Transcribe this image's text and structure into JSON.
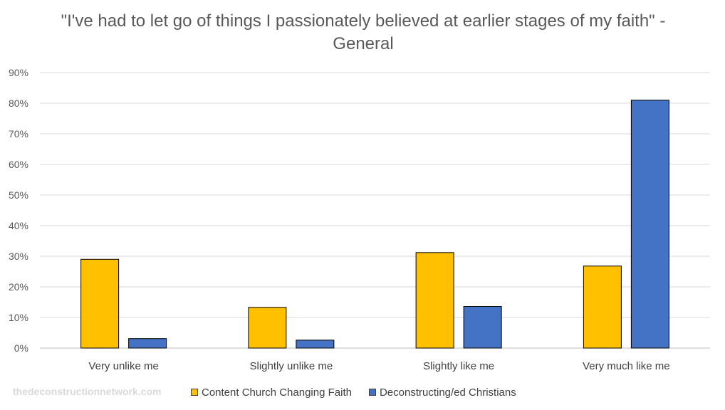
{
  "chart_data": {
    "type": "bar",
    "title": "\"I've had to let go of things I passionately believed at earlier stages of my faith\" - General",
    "categories": [
      "Very unlike me",
      "Slightly unlike me",
      "Slightly like me",
      "Very much like me"
    ],
    "series": [
      {
        "name": "Content Church Changing Faith",
        "color": "#FFC000",
        "values": [
          29,
          13.3,
          31.2,
          26.8
        ]
      },
      {
        "name": "Deconstructing/ed Christians",
        "color": "#4472C4",
        "values": [
          3.1,
          2.6,
          13.6,
          81
        ]
      }
    ],
    "ylim": [
      0,
      90
    ],
    "yticks": [
      "0%",
      "10%",
      "20%",
      "30%",
      "40%",
      "50%",
      "60%",
      "70%",
      "80%",
      "90%"
    ],
    "grid": true,
    "legend_position": "bottom"
  },
  "watermark": "thedeconstructionnetwork.com"
}
